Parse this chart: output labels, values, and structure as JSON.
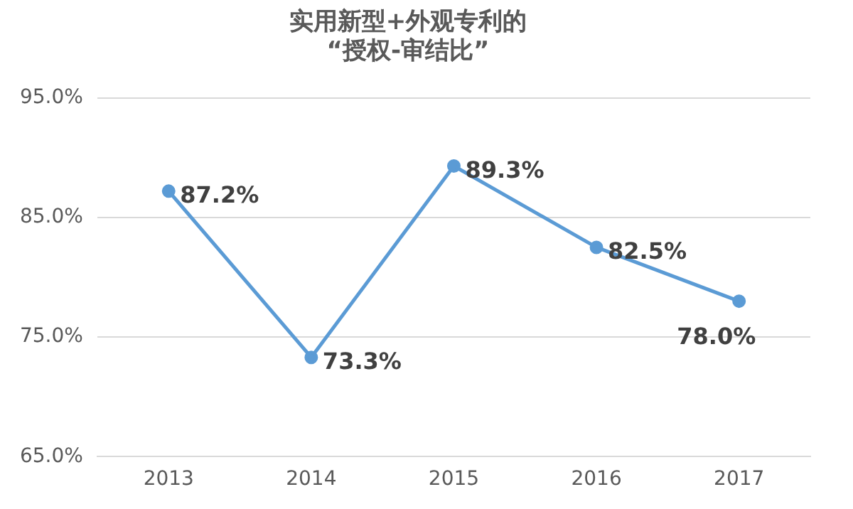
{
  "chart_data": {
    "type": "line",
    "title": "实用新型+外观专利的\n“授权-审结比”",
    "categories": [
      "2013",
      "2014",
      "2015",
      "2016",
      "2017"
    ],
    "series": [
      {
        "color": "#5b9bd5",
        "values": [
          87.2,
          73.3,
          89.3,
          82.5,
          78.0
        ],
        "value_labels": [
          "87.2%",
          "73.3%",
          "89.3%",
          "82.5%",
          "78.0%"
        ]
      }
    ],
    "ylim": [
      65,
      95
    ],
    "yticks": [
      {
        "value": 65,
        "label": "65.0%"
      },
      {
        "value": 75,
        "label": "75.0%"
      },
      {
        "value": 85,
        "label": "85.0%"
      },
      {
        "value": 95,
        "label": "95.0%"
      }
    ],
    "grid": "y",
    "legend": false,
    "marker": "circle",
    "line_style": "solid"
  }
}
